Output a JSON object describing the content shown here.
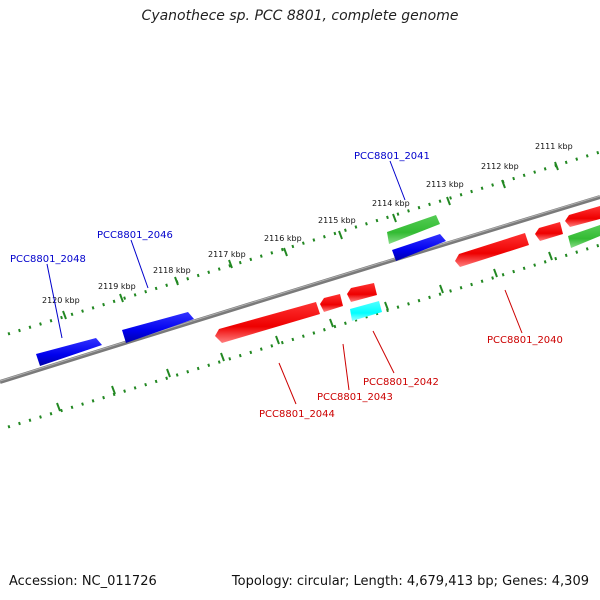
{
  "title": "Cyanothece sp. PCC 8801, complete genome",
  "footer": {
    "accession": "Accession: NC_011726",
    "summary": "Topology: circular; Length: 4,679,413 bp; Genes: 4,309"
  },
  "colors": {
    "forward_gene": "#0000ee",
    "reverse_gene": "#ee0000",
    "rna_gene": "#33bb33",
    "other_gene": "#00ffff",
    "backbone": "#808080",
    "ruler": "#228822"
  },
  "ruler_labels": [
    "2111 kbp",
    "2112 kbp",
    "2113 kbp",
    "2114 kbp",
    "2115 kbp",
    "2116 kbp",
    "2117 kbp",
    "2118 kbp",
    "2119 kbp",
    "2120 kbp"
  ],
  "gene_labels": [
    "PCC8801_2048",
    "PCC8801_2046",
    "PCC8801_2041",
    "PCC8801_2040",
    "PCC8801_2042",
    "PCC8801_2043",
    "PCC8801_2044"
  ]
}
